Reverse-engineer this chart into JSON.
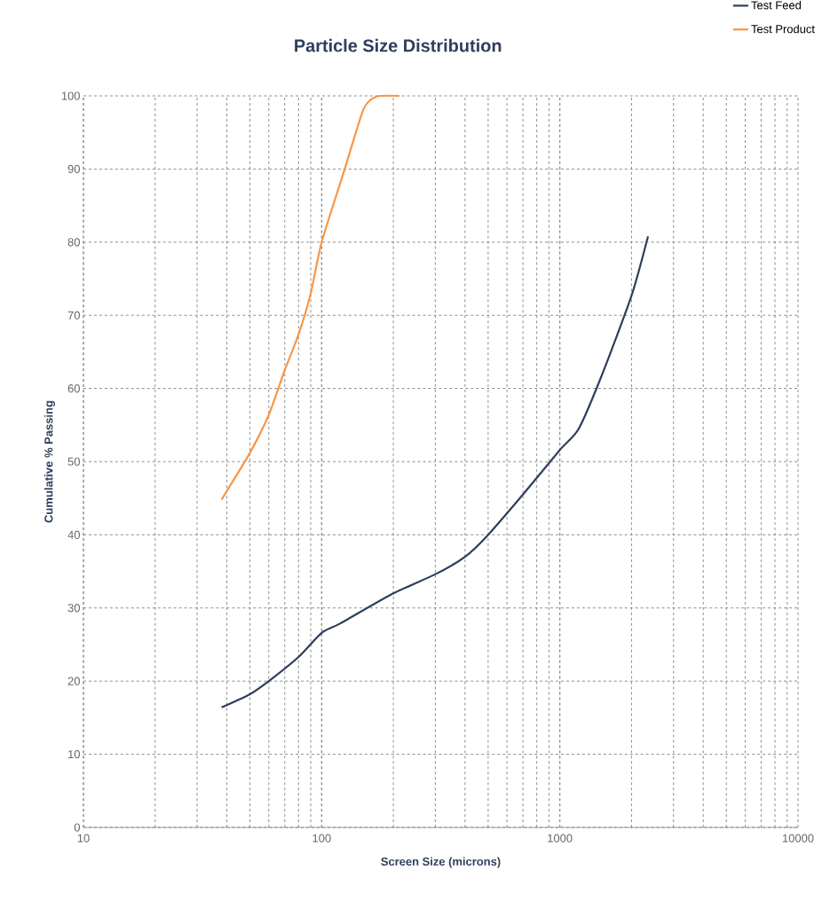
{
  "chart_data": {
    "type": "line",
    "title": "Particle Size Distribution",
    "xlabel": "Screen Size (microns)",
    "ylabel": "Cumulative % Passing",
    "log": "x",
    "grid": true,
    "legend": "top right",
    "line_style": "solid",
    "marker": "none",
    "xlim": [
      10,
      10000
    ],
    "xticks": [
      10,
      100,
      1000,
      10000
    ],
    "ylim": [
      0,
      100
    ],
    "yticks": [
      0,
      10,
      20,
      30,
      40,
      50,
      60,
      70,
      80,
      90,
      100
    ],
    "series": [
      {
        "name": "Test Feed",
        "color": "#2e3f5c",
        "x": [
          38,
          50,
          60,
          80,
          100,
          120,
          200,
          300,
          400,
          500,
          700,
          1000,
          1200,
          1500,
          2000,
          2345
        ],
        "values": [
          16.4,
          18.2,
          20,
          23.3,
          26.6,
          27.9,
          32,
          34.6,
          37,
          40,
          45.5,
          51.6,
          54.5,
          61.8,
          72.7,
          80.8
        ]
      },
      {
        "name": "Test Product",
        "color": "#f79646",
        "x": [
          38,
          40,
          50,
          60,
          70,
          80,
          90,
          100,
          125,
          150,
          170,
          212
        ],
        "values": [
          44.8,
          46,
          51.2,
          56.4,
          62.5,
          67.4,
          73,
          80,
          90,
          98.2,
          99.9,
          100
        ]
      }
    ]
  }
}
